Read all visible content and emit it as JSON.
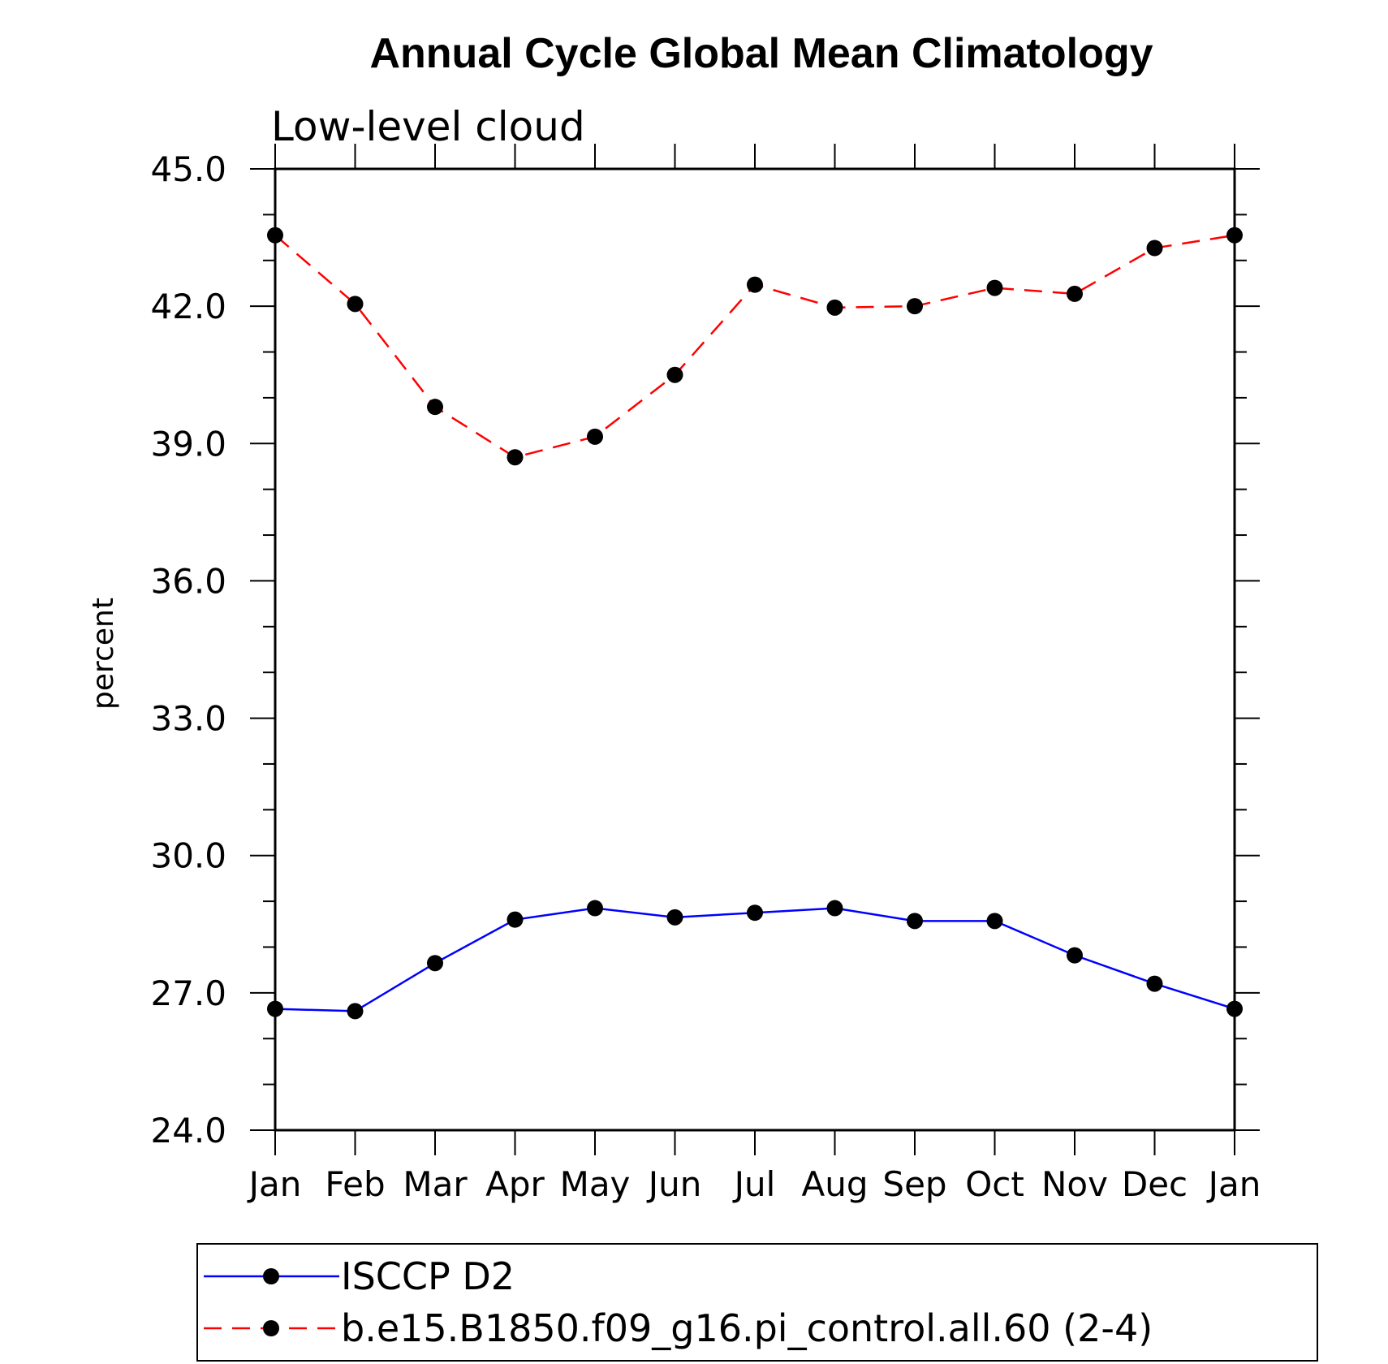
{
  "chart_data": {
    "type": "line",
    "title": "Annual Cycle Global Mean Climatology",
    "subtitle": "Low-level cloud",
    "xlabel": "",
    "ylabel": "percent",
    "ylim": [
      24.0,
      45.0
    ],
    "yticks": [
      "24.0",
      "27.0",
      "30.0",
      "33.0",
      "36.0",
      "39.0",
      "42.0",
      "45.0"
    ],
    "categories": [
      "Jan",
      "Feb",
      "Mar",
      "Apr",
      "May",
      "Jun",
      "Jul",
      "Aug",
      "Sep",
      "Oct",
      "Nov",
      "Dec",
      "Jan"
    ],
    "legend_position": "bottom",
    "grid": false,
    "series": [
      {
        "name": "ISCCP D2",
        "color": "#0000ff",
        "line_style": "solid",
        "marker": "filled-circle",
        "values": [
          26.65,
          26.6,
          27.65,
          28.6,
          28.85,
          28.65,
          28.75,
          28.85,
          28.57,
          28.57,
          27.82,
          27.2,
          26.65
        ]
      },
      {
        "name": "b.e15.B1850.f09_g16.pi_control.all.60 (2-4)",
        "color": "#ff0000",
        "line_style": "dashed",
        "marker": "filled-circle",
        "values": [
          43.55,
          42.05,
          39.8,
          38.7,
          39.15,
          40.5,
          42.47,
          41.97,
          42.0,
          42.4,
          42.27,
          43.27,
          43.55
        ]
      }
    ]
  }
}
